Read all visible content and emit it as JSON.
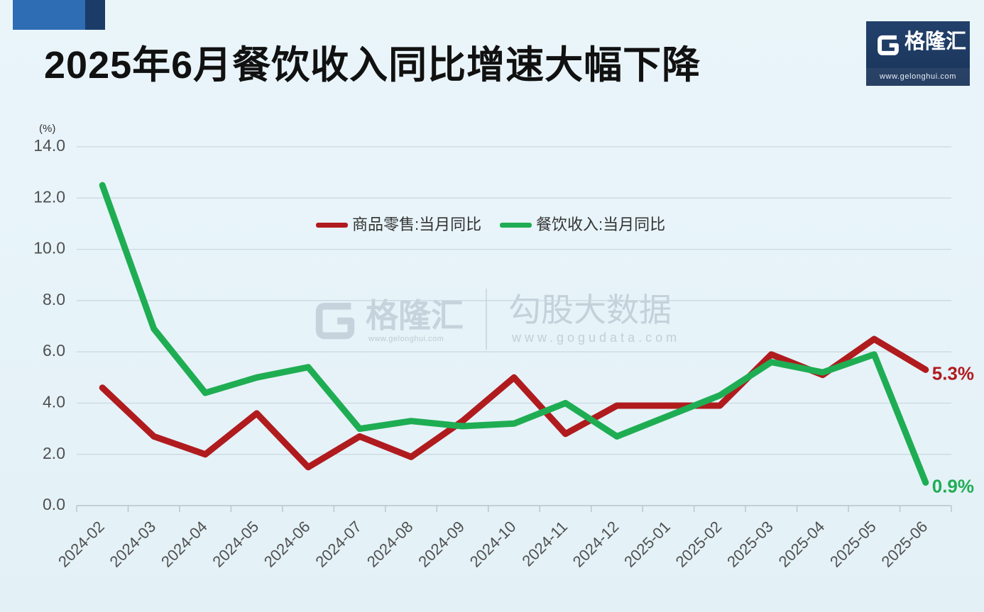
{
  "logo": {
    "brand": "格隆汇",
    "url": "www.gelonghui.com"
  },
  "watermark": {
    "brand": "格隆汇",
    "brand_url": "www.gelonghui.com",
    "product": "勾股大数据",
    "product_url": "www.gogudata.com"
  },
  "colors": {
    "accent_blue": "#2e6db4",
    "accent_navy": "#1b3c68",
    "gridline": "#c9d6de",
    "axis": "#b7c4cc",
    "tick_label": "#505050"
  },
  "chart_data": {
    "type": "line",
    "title": "2025年6月餐饮收入同比增速大幅下降",
    "xlabel": "",
    "ylabel": "(%)",
    "ylim": [
      0,
      14
    ],
    "yticks": [
      "0.0",
      "2.0",
      "4.0",
      "6.0",
      "8.0",
      "10.0",
      "12.0",
      "14.0"
    ],
    "grid": true,
    "legend": "top-center",
    "categories": [
      "2024-02",
      "2024-03",
      "2024-04",
      "2024-05",
      "2024-06",
      "2024-07",
      "2024-08",
      "2024-09",
      "2024-10",
      "2024-11",
      "2024-12",
      "2025-01",
      "2025-02",
      "2025-03",
      "2025-04",
      "2025-05",
      "2025-06"
    ],
    "series": [
      {
        "name": "商品零售:当月同比",
        "color": "#b01b1e",
        "values": [
          4.6,
          2.7,
          2.0,
          3.6,
          1.5,
          2.7,
          1.9,
          3.3,
          5.0,
          2.8,
          3.9,
          3.9,
          3.9,
          5.9,
          5.1,
          6.5,
          5.3
        ],
        "end_label": "5.3%"
      },
      {
        "name": "餐饮收入:当月同比",
        "color": "#1fad53",
        "values": [
          12.5,
          6.9,
          4.4,
          5.0,
          5.4,
          3.0,
          3.3,
          3.1,
          3.2,
          4.0,
          2.7,
          3.5,
          4.3,
          5.6,
          5.2,
          5.9,
          0.9
        ],
        "end_label": "0.9%"
      }
    ]
  }
}
